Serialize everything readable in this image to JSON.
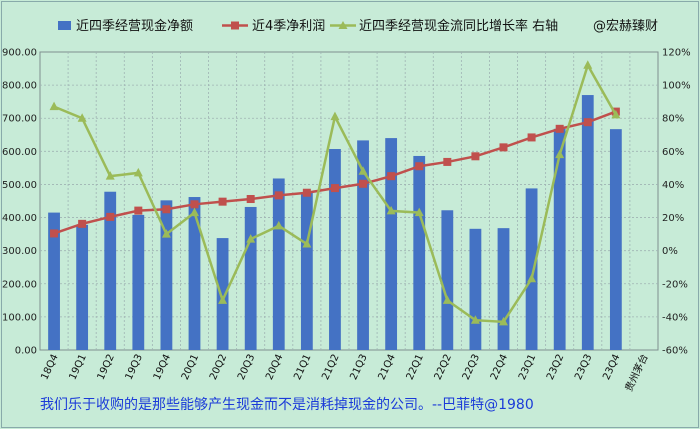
{
  "colors": {
    "background": "#c7ebd7",
    "bar": "#4472c4",
    "line_profit": "#c0504d",
    "line_growth": "#9bbb59",
    "caption": "#1b3bd8"
  },
  "caption": "我们乐于收购的是那些能够产生现金而不是消耗掉现金的公司。--巴菲特@1980",
  "chart_data": {
    "type": "bar",
    "categories": [
      "18Q4",
      "19Q1",
      "19Q2",
      "19Q3",
      "19Q4",
      "20Q1",
      "20Q2",
      "20Q3",
      "20Q4",
      "21Q1",
      "21Q2",
      "21Q3",
      "21Q4",
      "22Q1",
      "22Q2",
      "22Q3",
      "22Q4",
      "23Q1",
      "23Q2",
      "23Q3",
      "23Q4"
    ],
    "extra_category_label": "贵州茅台",
    "legend": {
      "bar": "近四季经营现金净额",
      "line1": "近4季净利润",
      "line2": "近四季经营现金流同比增长率 右轴",
      "watermark": "@宏赫臻财",
      "placement": "top"
    },
    "series": [
      {
        "name": "近四季经营现金净额",
        "type": "bar",
        "axis": "left",
        "values": [
          415,
          378,
          478,
          408,
          452,
          462,
          338,
          432,
          518,
          475,
          607,
          633,
          640,
          586,
          422,
          366,
          368,
          488,
          668,
          770,
          667
        ]
      },
      {
        "name": "近4季净利润",
        "type": "line",
        "axis": "left",
        "values": [
          352,
          381,
          402,
          421,
          425,
          440,
          448,
          456,
          467,
          475,
          489,
          502,
          525,
          555,
          568,
          585,
          612,
          642,
          668,
          688,
          720
        ]
      },
      {
        "name": "近四季经营现金流同比增长率 右轴",
        "type": "line",
        "axis": "right",
        "values": [
          87,
          80,
          45,
          47,
          10,
          23,
          -30,
          7,
          15,
          4,
          81,
          48,
          24,
          23,
          -30,
          -42,
          -43,
          -17,
          58,
          112,
          82
        ]
      }
    ],
    "yaxis_left": {
      "min": 0,
      "max": 900,
      "step": 100,
      "tick_labels": [
        "0.00",
        "100.00",
        "200.00",
        "300.00",
        "400.00",
        "500.00",
        "600.00",
        "700.00",
        "800.00",
        "900.00"
      ]
    },
    "yaxis_right": {
      "min": -60,
      "max": 120,
      "step": 20,
      "tick_labels": [
        "-60%",
        "-40%",
        "-20%",
        "0%",
        "20%",
        "40%",
        "60%",
        "80%",
        "100%",
        "120%"
      ]
    },
    "grid": true
  }
}
